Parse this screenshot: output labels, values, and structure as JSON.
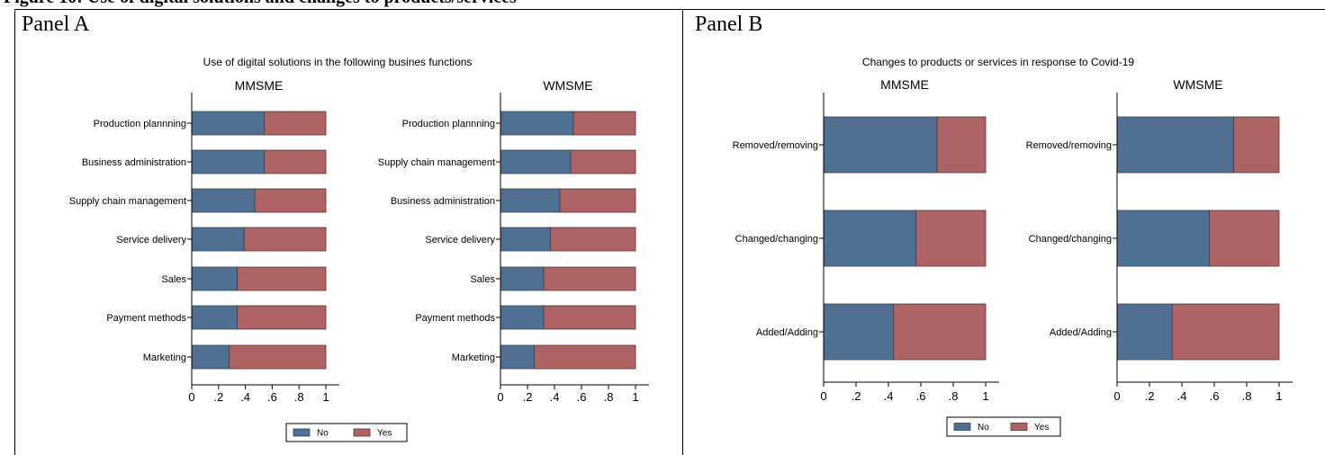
{
  "figure_title": "Figure 10: Use of digital solutions and changes to products/services",
  "panel_a": {
    "label": "Panel A"
  },
  "panel_b": {
    "label": "Panel B"
  },
  "colors": {
    "no": "#4f7092",
    "yes": "#ae6364"
  },
  "chart_data": [
    {
      "type": "bar",
      "orientation": "horizontal",
      "stacked": true,
      "panel": "Panel A",
      "title": "Use of digital solutions in the following busines functions",
      "legend": {
        "position": "bottom",
        "entries": [
          "No",
          "Yes"
        ]
      },
      "xlim": [
        0,
        1
      ],
      "xticks": [
        "0",
        ".2",
        ".4",
        ".6",
        ".8",
        "1"
      ],
      "grid": false,
      "subplots": [
        {
          "title": "MMSME",
          "categories": [
            "Production plannning",
            "Business administration",
            "Supply chain management",
            "Service delivery",
            "Sales",
            "Payment methods",
            "Marketing"
          ],
          "series": [
            {
              "name": "No",
              "values": [
                0.54,
                0.54,
                0.47,
                0.39,
                0.34,
                0.34,
                0.28
              ]
            },
            {
              "name": "Yes",
              "values": [
                0.46,
                0.46,
                0.53,
                0.61,
                0.66,
                0.66,
                0.72
              ]
            }
          ]
        },
        {
          "title": "WMSME",
          "categories": [
            "Production plannning",
            "Supply chain management",
            "Business administration",
            "Service delivery",
            "Sales",
            "Payment methods",
            "Marketing"
          ],
          "series": [
            {
              "name": "No",
              "values": [
                0.54,
                0.52,
                0.44,
                0.37,
                0.32,
                0.32,
                0.25
              ]
            },
            {
              "name": "Yes",
              "values": [
                0.46,
                0.48,
                0.56,
                0.63,
                0.68,
                0.68,
                0.75
              ]
            }
          ]
        }
      ]
    },
    {
      "type": "bar",
      "orientation": "horizontal",
      "stacked": true,
      "panel": "Panel B",
      "title": "Changes to products or services in response to Covid-19",
      "legend": {
        "position": "bottom",
        "entries": [
          "No",
          "Yes"
        ]
      },
      "xlim": [
        0,
        1
      ],
      "xticks": [
        "0",
        ".2",
        ".4",
        ".6",
        ".8",
        "1"
      ],
      "grid": false,
      "subplots": [
        {
          "title": "MMSME",
          "categories": [
            "Removed/removing",
            "Changed/changing",
            "Added/Adding"
          ],
          "series": [
            {
              "name": "No",
              "values": [
                0.7,
                0.57,
                0.43
              ]
            },
            {
              "name": "Yes",
              "values": [
                0.3,
                0.43,
                0.57
              ]
            }
          ]
        },
        {
          "title": "WMSME",
          "categories": [
            "Removed/removing",
            "Changed/changing",
            "Added/Adding"
          ],
          "series": [
            {
              "name": "No",
              "values": [
                0.72,
                0.57,
                0.34
              ]
            },
            {
              "name": "Yes",
              "values": [
                0.28,
                0.43,
                0.66
              ]
            }
          ]
        }
      ]
    }
  ]
}
